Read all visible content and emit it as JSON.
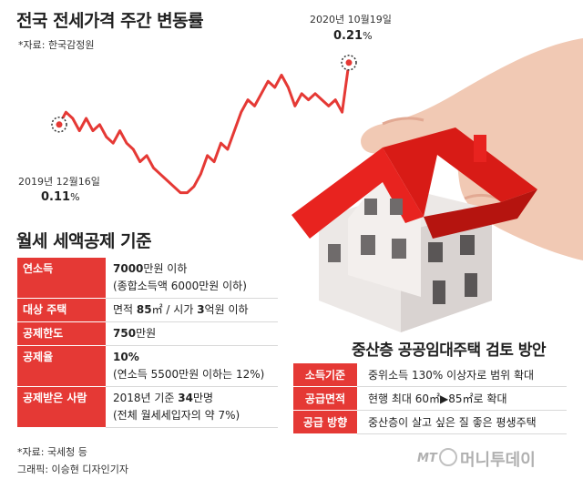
{
  "header": {
    "title": "전국 전세가격 주간 변동률",
    "source": "*자료: 한국감정원"
  },
  "chart_data": {
    "type": "line",
    "title": "전국 전세가격 주간 변동률",
    "xlabel": "",
    "ylabel": "",
    "start": {
      "date": "2019년 12월16일",
      "value": 0.11,
      "value_text": "0.11",
      "unit": "%"
    },
    "end": {
      "date": "2020년 10월19일",
      "value": 0.21,
      "value_text": "0.21",
      "unit": "%"
    },
    "ylim": [
      -0.03,
      0.22
    ],
    "series": [
      {
        "values": [
          0.11,
          0.13,
          0.12,
          0.1,
          0.12,
          0.1,
          0.11,
          0.09,
          0.08,
          0.1,
          0.08,
          0.07,
          0.05,
          0.06,
          0.04,
          0.03,
          0.02,
          0.01,
          0.0,
          0.0,
          0.01,
          0.03,
          0.06,
          0.05,
          0.08,
          0.07,
          0.1,
          0.13,
          0.15,
          0.14,
          0.16,
          0.18,
          0.17,
          0.19,
          0.17,
          0.14,
          0.16,
          0.15,
          0.16,
          0.15,
          0.14,
          0.15,
          0.13,
          0.21
        ],
        "color": "#e53935"
      }
    ],
    "grid": false,
    "legend": "none"
  },
  "monthly_rent": {
    "title": "월세 세액공제 기준",
    "rows": [
      {
        "label": "연소득",
        "lines": [
          {
            "bold": "7000",
            "rest": "만원 이하"
          },
          {
            "bold": "",
            "rest": "(종합소득액 6000만원 이하)"
          }
        ]
      },
      {
        "label": "대상 주택",
        "lines": [
          {
            "pre": "면적 ",
            "bold": "85",
            "rest": "㎡ / 시가 ",
            "bold2": "3",
            "rest2": "억원 이하"
          }
        ]
      },
      {
        "label": "공제한도",
        "lines": [
          {
            "bold": "750",
            "rest": "만원"
          }
        ]
      },
      {
        "label": "공제율",
        "lines": [
          {
            "bold": "10%",
            "rest": ""
          },
          {
            "bold": "",
            "rest": "(연소득 5500만원 이하는 12%)"
          }
        ]
      },
      {
        "label": "공제받은 사람",
        "lines": [
          {
            "pre": "2018년 기준 ",
            "bold": "34",
            "rest": "만명"
          },
          {
            "bold": "",
            "rest": "(전체 월세세입자의 약 7%)"
          }
        ]
      }
    ]
  },
  "public_rental": {
    "title": "중산층 공공임대주택 검토 방안",
    "rows": [
      {
        "label": "소득기준",
        "value": "중위소득 130% 이상자로 범위 확대"
      },
      {
        "label": "공급면적",
        "value": "현행 최대 60㎡▶85㎡로 확대"
      },
      {
        "label": "공급 방향",
        "value": "중산층이 살고 싶은 질 좋은 평생주택"
      }
    ]
  },
  "footer": {
    "source": "*자료: 국세청 등",
    "graphic": "그래픽: 이승현 디자인기자",
    "logo_mt": "MT",
    "logo_name": "머니투데이"
  },
  "colors": {
    "accent": "#e53935",
    "skin": "#f1c9b4",
    "roof": "#e8231f",
    "wall": "#ece8e6"
  }
}
